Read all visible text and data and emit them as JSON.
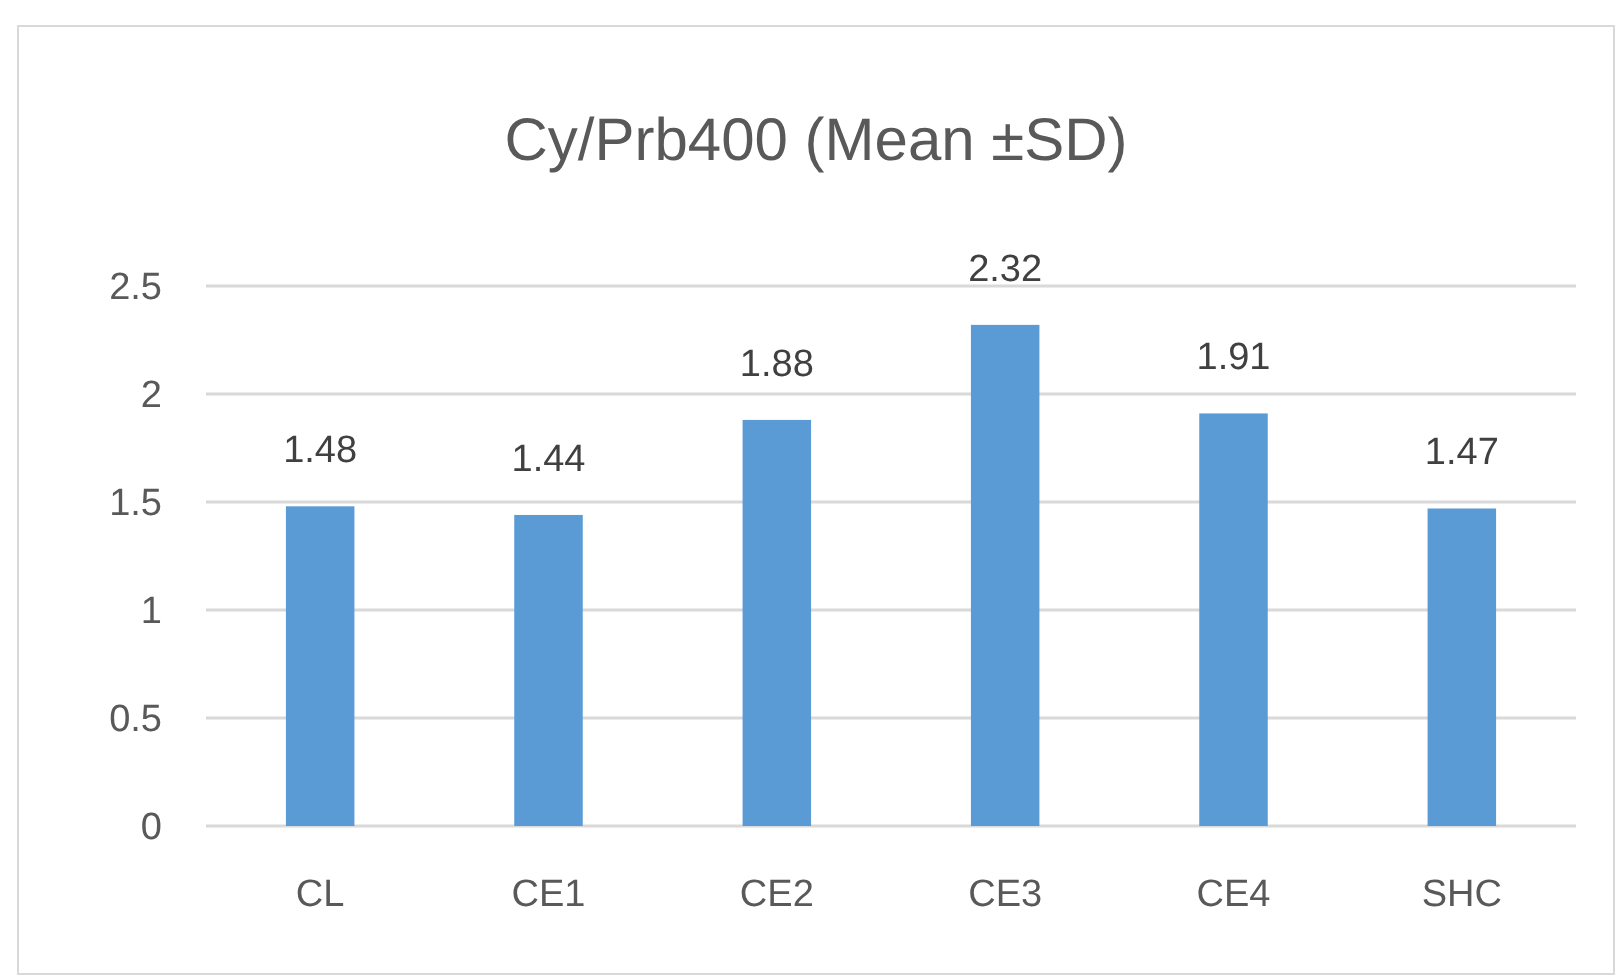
{
  "chart_data": {
    "type": "bar",
    "title": "Cy/Prb400 (Mean ±SD)",
    "categories": [
      "CL",
      "CE1",
      "CE2",
      "CE3",
      "CE4",
      "SHC"
    ],
    "values": [
      1.48,
      1.44,
      1.88,
      2.32,
      1.91,
      1.47
    ],
    "color": "#5b9bd5",
    "ylim": [
      0,
      2.5
    ],
    "yticks": [
      0,
      0.5,
      1,
      1.5,
      2,
      2.5
    ],
    "grid": "y",
    "data_labels": true
  }
}
